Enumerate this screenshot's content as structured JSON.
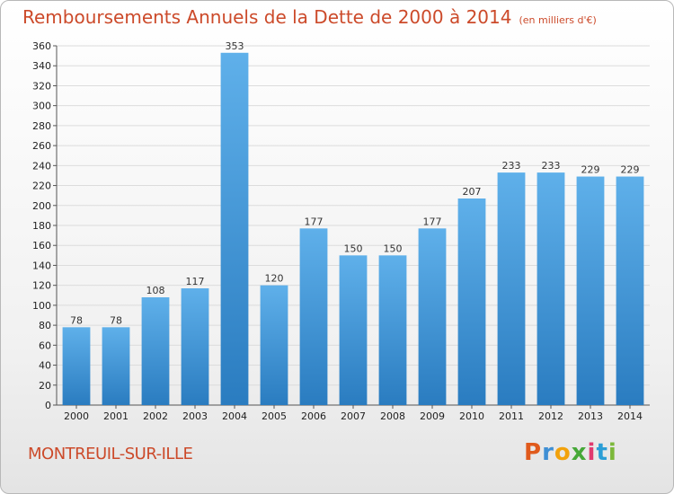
{
  "header": {
    "title": "Remboursements Annuels de la Dette de 2000 à 2014",
    "subtitle": "(en milliers d'€)"
  },
  "footer": {
    "commune": "MONTREUIL-SUR-ILLE",
    "logo_text": "Proxiti"
  },
  "colors": {
    "bar_top": "#5fb0ea",
    "bar_bottom": "#2a7cc0",
    "title": "#cc4a2a",
    "grid": "#dcdcdc"
  },
  "chart_data": {
    "type": "bar",
    "categories": [
      "2000",
      "2001",
      "2002",
      "2003",
      "2004",
      "2005",
      "2006",
      "2007",
      "2008",
      "2009",
      "2010",
      "2011",
      "2012",
      "2013",
      "2014"
    ],
    "values": [
      78,
      78,
      108,
      117,
      353,
      120,
      177,
      150,
      150,
      177,
      207,
      233,
      233,
      229,
      229
    ],
    "title": "Remboursements Annuels de la Dette de 2000 à 2014",
    "unit": "(en milliers d'€)",
    "ylim": [
      0,
      360
    ],
    "ytick_step": 20,
    "grid": true,
    "legend": "none"
  }
}
